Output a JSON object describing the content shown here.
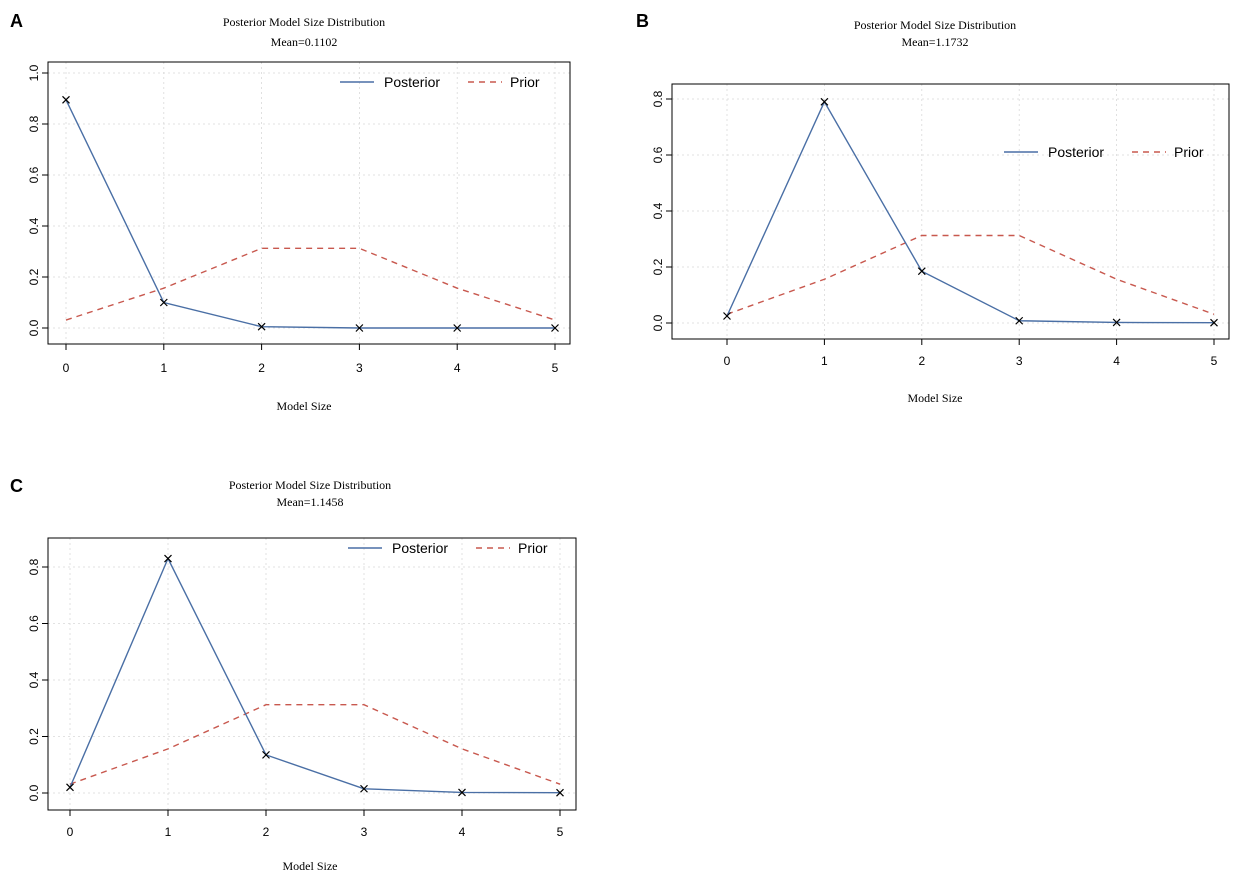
{
  "colors": {
    "posterior": "#4a6fa5",
    "prior": "#c8584e",
    "axis": "#000000",
    "grid": "#d9d9d9"
  },
  "chart_data": [
    {
      "type": "line",
      "panel": "A",
      "title": "Posterior Model Size Distribution",
      "subtitle": "Mean=0.1102",
      "xlabel": "Model Size",
      "ylabel": "",
      "x": [
        0,
        1,
        2,
        3,
        4,
        5
      ],
      "x_tick_labels": [
        "0",
        "1",
        "2",
        "3",
        "4",
        "5"
      ],
      "y_ticks": [
        0.0,
        0.2,
        0.4,
        0.6,
        0.8,
        1.0
      ],
      "y_tick_labels": [
        "0.0",
        "0.2",
        "0.4",
        "0.6",
        "0.8",
        "1.0"
      ],
      "ylim": [
        0,
        1.0
      ],
      "legend_placement": "top-right",
      "series": [
        {
          "name": "Posterior",
          "values": [
            0.895,
            0.1,
            0.005,
            0.0,
            0.0,
            0.0
          ]
        },
        {
          "name": "Prior",
          "values": [
            0.03125,
            0.15625,
            0.3125,
            0.3125,
            0.15625,
            0.03125
          ]
        }
      ]
    },
    {
      "type": "line",
      "panel": "B",
      "title": "Posterior Model Size Distribution",
      "subtitle": "Mean=1.1732",
      "xlabel": "Model Size",
      "ylabel": "",
      "x": [
        0,
        1,
        2,
        3,
        4,
        5
      ],
      "x_tick_labels": [
        "0",
        "1",
        "2",
        "3",
        "4",
        "5"
      ],
      "y_ticks": [
        0.0,
        0.2,
        0.4,
        0.6,
        0.8
      ],
      "y_tick_labels": [
        "0.0",
        "0.2",
        "0.4",
        "0.6",
        "0.8"
      ],
      "ylim": [
        0,
        0.8
      ],
      "legend_placement": "right",
      "series": [
        {
          "name": "Posterior",
          "values": [
            0.025,
            0.79,
            0.185,
            0.008,
            0.002,
            0.001
          ]
        },
        {
          "name": "Prior",
          "values": [
            0.03125,
            0.15625,
            0.3125,
            0.3125,
            0.15625,
            0.03125
          ]
        }
      ]
    },
    {
      "type": "line",
      "panel": "C",
      "title": "Posterior Model Size Distribution",
      "subtitle": "Mean=1.1458",
      "xlabel": "Model Size",
      "ylabel": "",
      "x": [
        0,
        1,
        2,
        3,
        4,
        5
      ],
      "x_tick_labels": [
        "0",
        "1",
        "2",
        "3",
        "4",
        "5"
      ],
      "y_ticks": [
        0.0,
        0.2,
        0.4,
        0.6,
        0.8
      ],
      "y_tick_labels": [
        "0.0",
        "0.2",
        "0.4",
        "0.6",
        "0.8"
      ],
      "ylim": [
        0,
        0.8
      ],
      "legend_placement": "top-right",
      "series": [
        {
          "name": "Posterior",
          "values": [
            0.02,
            0.83,
            0.135,
            0.015,
            0.002,
            0.001
          ]
        },
        {
          "name": "Prior",
          "values": [
            0.03125,
            0.15625,
            0.3125,
            0.3125,
            0.15625,
            0.03125
          ]
        }
      ]
    }
  ]
}
